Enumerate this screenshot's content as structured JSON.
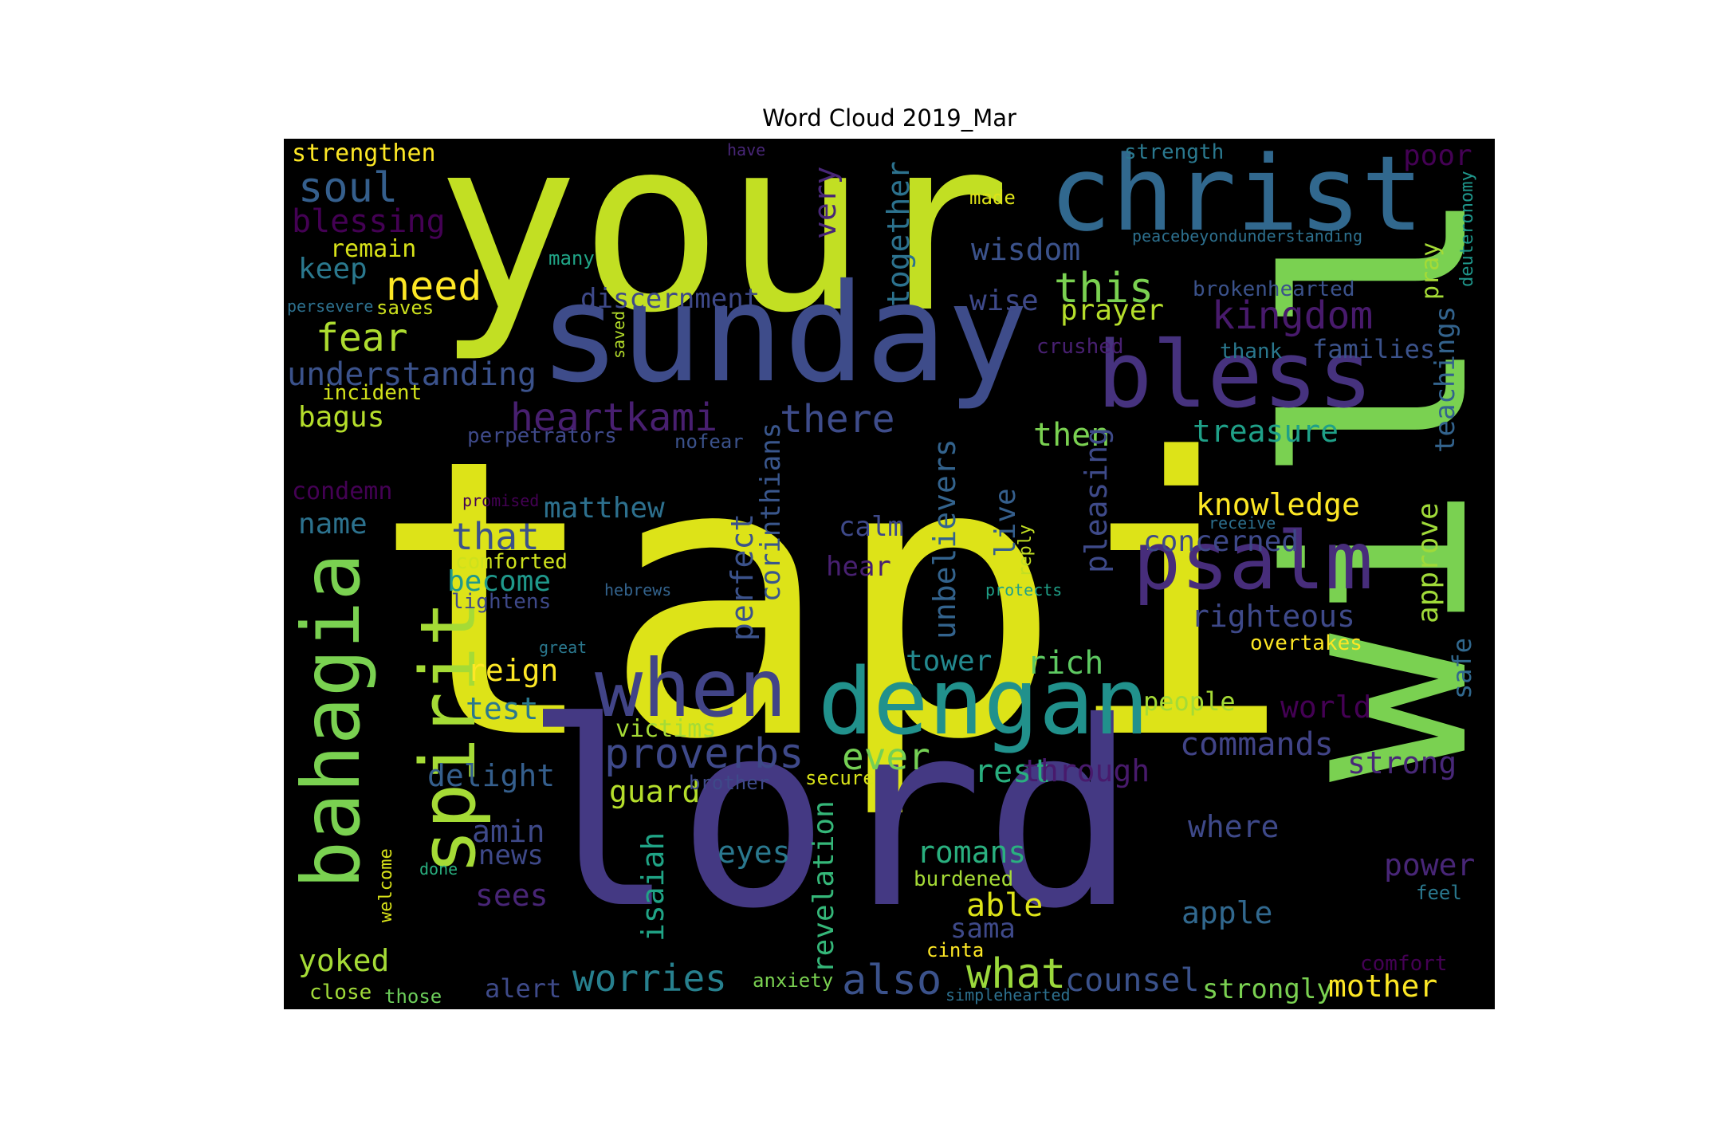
{
  "title": "Word Cloud 2019_Mar",
  "words": [
    {
      "text": "tapi",
      "color": "#dde318"
    },
    {
      "text": "your",
      "color": "#c2df23"
    },
    {
      "text": "will",
      "color": "#7ad151"
    },
    {
      "text": "lord",
      "color": "#443983"
    },
    {
      "text": "sunday",
      "color": "#3e4c8a"
    },
    {
      "text": "christ",
      "color": "#31688e"
    },
    {
      "text": "bless",
      "color": "#46327e"
    },
    {
      "text": "dengan",
      "color": "#21918c"
    },
    {
      "text": "psalm",
      "color": "#472d7b"
    },
    {
      "text": "when",
      "color": "#414487"
    },
    {
      "text": "bahagia",
      "color": "#7ad151"
    },
    {
      "text": "spirit",
      "color": "#a5db36"
    },
    {
      "text": "soul",
      "color": "#355f8d"
    },
    {
      "text": "strengthen",
      "color": "#fde725"
    },
    {
      "text": "blessing",
      "color": "#440154"
    },
    {
      "text": "remain",
      "color": "#d8e219"
    },
    {
      "text": "keep",
      "color": "#2a788e"
    },
    {
      "text": "need",
      "color": "#fde725"
    },
    {
      "text": "fear",
      "color": "#addc30"
    },
    {
      "text": "understanding",
      "color": "#3b528b"
    },
    {
      "text": "incident",
      "color": "#d2e21b"
    },
    {
      "text": "bagus",
      "color": "#b5de2b"
    },
    {
      "text": "perpetrators",
      "color": "#3e4989"
    },
    {
      "text": "condemn",
      "color": "#440154"
    },
    {
      "text": "name",
      "color": "#2c728e"
    },
    {
      "text": "that",
      "color": "#3b528b"
    },
    {
      "text": "become",
      "color": "#1f988b"
    },
    {
      "text": "comforted",
      "color": "#cde11d"
    },
    {
      "text": "lightens",
      "color": "#3e4989"
    },
    {
      "text": "reign",
      "color": "#fde725"
    },
    {
      "text": "test",
      "color": "#2a788e"
    },
    {
      "text": "delight",
      "color": "#355f8d"
    },
    {
      "text": "amin",
      "color": "#3e4989"
    },
    {
      "text": "news",
      "color": "#3e4989"
    },
    {
      "text": "sees",
      "color": "#482576"
    },
    {
      "text": "welcome",
      "color": "#d8e219"
    },
    {
      "text": "done",
      "color": "#29af7f"
    },
    {
      "text": "yoked",
      "color": "#a5db36"
    },
    {
      "text": "close",
      "color": "#a0da39"
    },
    {
      "text": "those",
      "color": "#6ccd5a"
    },
    {
      "text": "alert",
      "color": "#3e4a89"
    },
    {
      "text": "worries",
      "color": "#27808e"
    },
    {
      "text": "anxiety",
      "color": "#7ad151"
    },
    {
      "text": "also",
      "color": "#3b528b"
    },
    {
      "text": "what",
      "color": "#9bd93c"
    },
    {
      "text": "simplehearted",
      "color": "#2d708e"
    },
    {
      "text": "counsel",
      "color": "#3b528b"
    },
    {
      "text": "strongly",
      "color": "#7ad151"
    },
    {
      "text": "mother",
      "color": "#fde725"
    },
    {
      "text": "have",
      "color": "#482677"
    },
    {
      "text": "made",
      "color": "#dde318"
    },
    {
      "text": "strength",
      "color": "#2a788e"
    },
    {
      "text": "poor",
      "color": "#440154"
    },
    {
      "text": "deuteronomy",
      "color": "#1f968b"
    },
    {
      "text": "peacebeyondunderstanding",
      "color": "#2d708e"
    },
    {
      "text": "many",
      "color": "#20a486"
    },
    {
      "text": "persevere",
      "color": "#2d708e"
    },
    {
      "text": "saves",
      "color": "#cde11d"
    },
    {
      "text": "saved",
      "color": "#b5de2b"
    },
    {
      "text": "discernment",
      "color": "#3e4989"
    },
    {
      "text": "very",
      "color": "#482677"
    },
    {
      "text": "together",
      "color": "#2c728e"
    },
    {
      "text": "wisdom",
      "color": "#3b528b"
    },
    {
      "text": "wise",
      "color": "#3e4989"
    },
    {
      "text": "this",
      "color": "#7ad151"
    },
    {
      "text": "prayer",
      "color": "#b5de2b"
    },
    {
      "text": "kingdom",
      "color": "#481a6c"
    },
    {
      "text": "brokenhearted",
      "color": "#3b528b"
    },
    {
      "text": "pray",
      "color": "#a5db36"
    },
    {
      "text": "thank",
      "color": "#2a788e"
    },
    {
      "text": "families",
      "color": "#3b528b"
    },
    {
      "text": "teachings",
      "color": "#33638d"
    },
    {
      "text": "crushed",
      "color": "#482071"
    },
    {
      "text": "heartkami",
      "color": "#481f70"
    },
    {
      "text": "there",
      "color": "#3e4c8a"
    },
    {
      "text": "then",
      "color": "#7ad151"
    },
    {
      "text": "treasure",
      "color": "#1fa088"
    },
    {
      "text": "nofear",
      "color": "#3b528b"
    },
    {
      "text": "corinthians",
      "color": "#39568c"
    },
    {
      "text": "unbelievers",
      "color": "#33638d"
    },
    {
      "text": "pleasing",
      "color": "#3e4a89"
    },
    {
      "text": "knowledge",
      "color": "#fde725"
    },
    {
      "text": "promised",
      "color": "#440154"
    },
    {
      "text": "receive",
      "color": "#2d708e"
    },
    {
      "text": "approve",
      "color": "#a0da39"
    },
    {
      "text": "matthew",
      "color": "#2d708e"
    },
    {
      "text": "calm",
      "color": "#3e4989"
    },
    {
      "text": "live",
      "color": "#355f8d"
    },
    {
      "text": "reply",
      "color": "#c2df23"
    },
    {
      "text": "concerned",
      "color": "#3e4989"
    },
    {
      "text": "perfect",
      "color": "#3b528b"
    },
    {
      "text": "hear",
      "color": "#482071"
    },
    {
      "text": "hebrews",
      "color": "#33638d"
    },
    {
      "text": "protects",
      "color": "#1fa088"
    },
    {
      "text": "righteous",
      "color": "#3e4989"
    },
    {
      "text": "overtakes",
      "color": "#fde725"
    },
    {
      "text": "great",
      "color": "#2a788e"
    },
    {
      "text": "safe",
      "color": "#31688e"
    },
    {
      "text": "tower",
      "color": "#23888e"
    },
    {
      "text": "rich",
      "color": "#5ec962"
    },
    {
      "text": "people",
      "color": "#a5db36"
    },
    {
      "text": "world",
      "color": "#440154"
    },
    {
      "text": "victims",
      "color": "#a5db36"
    },
    {
      "text": "proverbs",
      "color": "#3e4989"
    },
    {
      "text": "ever",
      "color": "#75d054"
    },
    {
      "text": "rest",
      "color": "#29af7f"
    },
    {
      "text": "through",
      "color": "#481a6c"
    },
    {
      "text": "commands",
      "color": "#414487"
    },
    {
      "text": "strong",
      "color": "#482878"
    },
    {
      "text": "guard",
      "color": "#b5de2b"
    },
    {
      "text": "brother",
      "color": "#3e4989"
    },
    {
      "text": "secure",
      "color": "#d8e219"
    },
    {
      "text": "isaiah",
      "color": "#20a486"
    },
    {
      "text": "eyes",
      "color": "#2a788e"
    },
    {
      "text": "revelation",
      "color": "#35b779"
    },
    {
      "text": "romans",
      "color": "#2ab07f"
    },
    {
      "text": "where",
      "color": "#3e4989"
    },
    {
      "text": "burdened",
      "color": "#a5db36"
    },
    {
      "text": "power",
      "color": "#482677"
    },
    {
      "text": "able",
      "color": "#dde318"
    },
    {
      "text": "sama",
      "color": "#3e4989"
    },
    {
      "text": "cinta",
      "color": "#fde725"
    },
    {
      "text": "apple",
      "color": "#31688e"
    },
    {
      "text": "feel",
      "color": "#2a788e"
    },
    {
      "text": "comfort",
      "color": "#440154"
    }
  ]
}
